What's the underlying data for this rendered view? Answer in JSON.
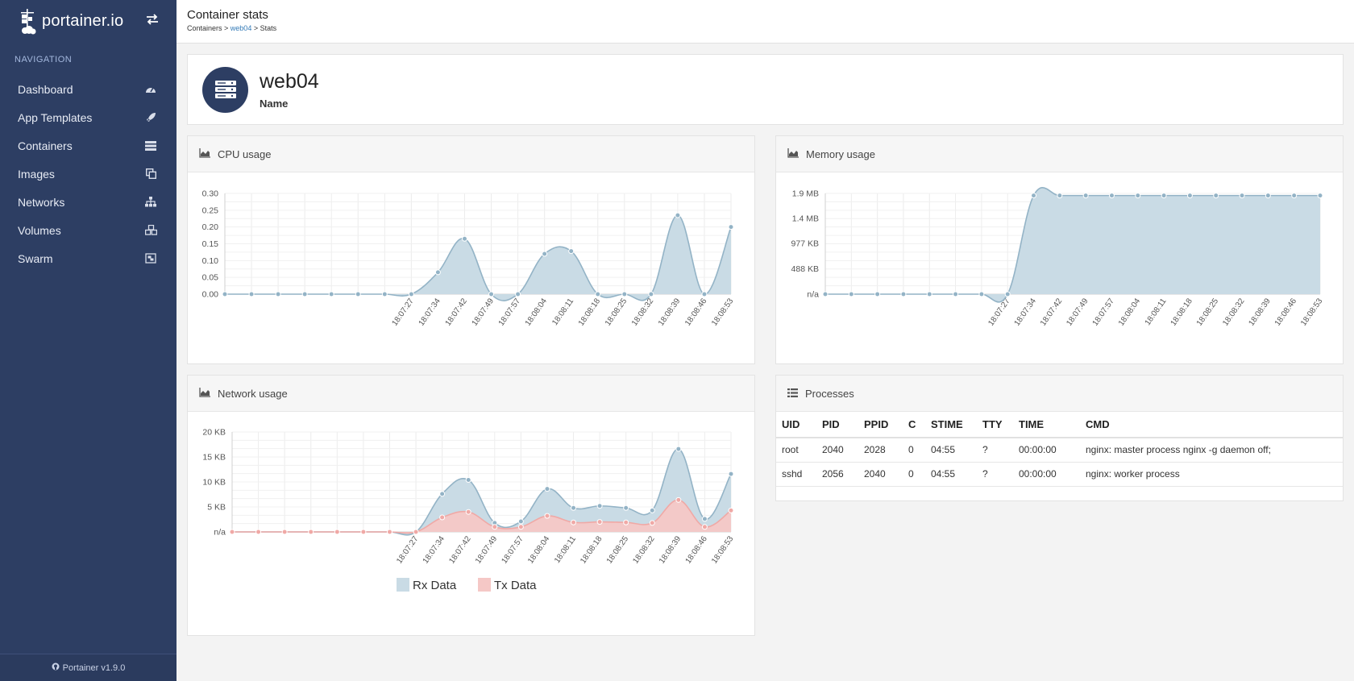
{
  "brand": {
    "name": "portainer.io"
  },
  "sidebar": {
    "title": "NAVIGATION",
    "items": [
      {
        "label": "Dashboard",
        "icon": "tachometer-icon"
      },
      {
        "label": "App Templates",
        "icon": "rocket-icon"
      },
      {
        "label": "Containers",
        "icon": "server-icon"
      },
      {
        "label": "Images",
        "icon": "clone-icon"
      },
      {
        "label": "Networks",
        "icon": "sitemap-icon"
      },
      {
        "label": "Volumes",
        "icon": "cubes-icon"
      },
      {
        "label": "Swarm",
        "icon": "object-group-icon"
      }
    ],
    "footer": "Portainer v1.9.0"
  },
  "header": {
    "title": "Container stats",
    "breadcrumb": {
      "root": "Containers",
      "sep1": " > ",
      "container": "web04",
      "sep2": " > ",
      "current": "Stats"
    }
  },
  "container": {
    "name": "web04",
    "name_label": "Name"
  },
  "colors": {
    "sidebar": "#2d3e63",
    "rx_fill": "#c9dbe5",
    "rx_line": "#93b3c6",
    "tx_fill": "#f5c8c6",
    "tx_line": "#f0a9a6"
  },
  "chart_data": [
    {
      "id": "cpu",
      "type": "area",
      "title": "CPU usage",
      "x": [
        "",
        "",
        "",
        "",
        "",
        "",
        "",
        "18:07:27",
        "18:07:34",
        "18:07:42",
        "18:07:49",
        "18:07:57",
        "18:08:04",
        "18:08:11",
        "18:08:18",
        "18:08:25",
        "18:08:32",
        "18:08:39",
        "18:08:46",
        "18:08:53"
      ],
      "series": [
        {
          "name": "CPU",
          "values": [
            0,
            0,
            0,
            0,
            0,
            0,
            0,
            0,
            0.065,
            0.165,
            0,
            0,
            0.12,
            0.128,
            0,
            0,
            0,
            0.235,
            0,
            0.2
          ]
        }
      ],
      "ylim": [
        0,
        0.3
      ],
      "yticks": [
        0,
        0.05,
        0.1,
        0.15,
        0.2,
        0.25,
        0.3
      ],
      "ytick_labels": [
        "0.00",
        "0.05",
        "0.10",
        "0.15",
        "0.20",
        "0.25",
        "0.30"
      ],
      "grid": true
    },
    {
      "id": "memory",
      "type": "area",
      "title": "Memory usage",
      "x": [
        "",
        "",
        "",
        "",
        "",
        "",
        "",
        "18:07:27",
        "18:07:34",
        "18:07:42",
        "18:07:49",
        "18:07:57",
        "18:08:04",
        "18:08:11",
        "18:08:18",
        "18:08:25",
        "18:08:32",
        "18:08:39",
        "18:08:46",
        "18:08:53"
      ],
      "series": [
        {
          "name": "Memory (MB)",
          "values": [
            0,
            0,
            0,
            0,
            0,
            0,
            0,
            0,
            1.86,
            1.86,
            1.86,
            1.86,
            1.86,
            1.86,
            1.86,
            1.86,
            1.86,
            1.86,
            1.86,
            1.86
          ]
        }
      ],
      "ylim": [
        0,
        1.9
      ],
      "yticks": [
        0,
        0.477,
        0.954,
        1.43,
        1.9
      ],
      "ytick_labels": [
        "n/a",
        "488 KB",
        "977 KB",
        "1.4 MB",
        "1.9 MB"
      ],
      "grid": true
    },
    {
      "id": "network",
      "type": "area",
      "title": "Network usage",
      "x": [
        "",
        "",
        "",
        "",
        "",
        "",
        "",
        "18:07:27",
        "18:07:34",
        "18:07:42",
        "18:07:49",
        "18:07:57",
        "18:08:04",
        "18:08:11",
        "18:08:18",
        "18:08:25",
        "18:08:32",
        "18:08:39",
        "18:08:46",
        "18:08:53"
      ],
      "series": [
        {
          "name": "Rx Data",
          "values": [
            0,
            0,
            0,
            0,
            0,
            0,
            0,
            0,
            7.6,
            10.4,
            1.8,
            2.1,
            8.6,
            4.8,
            5.2,
            4.8,
            4.3,
            16.6,
            2.6,
            11.6
          ]
        },
        {
          "name": "Tx Data",
          "values": [
            0,
            0,
            0,
            0,
            0,
            0,
            0,
            0,
            2.9,
            4.0,
            1.0,
            1.0,
            3.2,
            1.9,
            2.0,
            1.9,
            1.8,
            6.4,
            1.0,
            4.3
          ]
        }
      ],
      "ylim": [
        0,
        20
      ],
      "yticks": [
        0,
        5,
        10,
        15,
        20
      ],
      "ytick_labels": [
        "n/a",
        "5 KB",
        "10 KB",
        "15 KB",
        "20 KB"
      ],
      "legend": [
        "Rx Data",
        "Tx Data"
      ],
      "legend_position": "bottom",
      "grid": true
    }
  ],
  "processes": {
    "title": "Processes",
    "columns": [
      "UID",
      "PID",
      "PPID",
      "C",
      "STIME",
      "TTY",
      "TIME",
      "CMD"
    ],
    "rows": [
      [
        "root",
        "2040",
        "2028",
        "0",
        "04:55",
        "?",
        "00:00:00",
        "nginx: master process nginx -g daemon off;"
      ],
      [
        "sshd",
        "2056",
        "2040",
        "0",
        "04:55",
        "?",
        "00:00:00",
        "nginx: worker process"
      ]
    ]
  }
}
